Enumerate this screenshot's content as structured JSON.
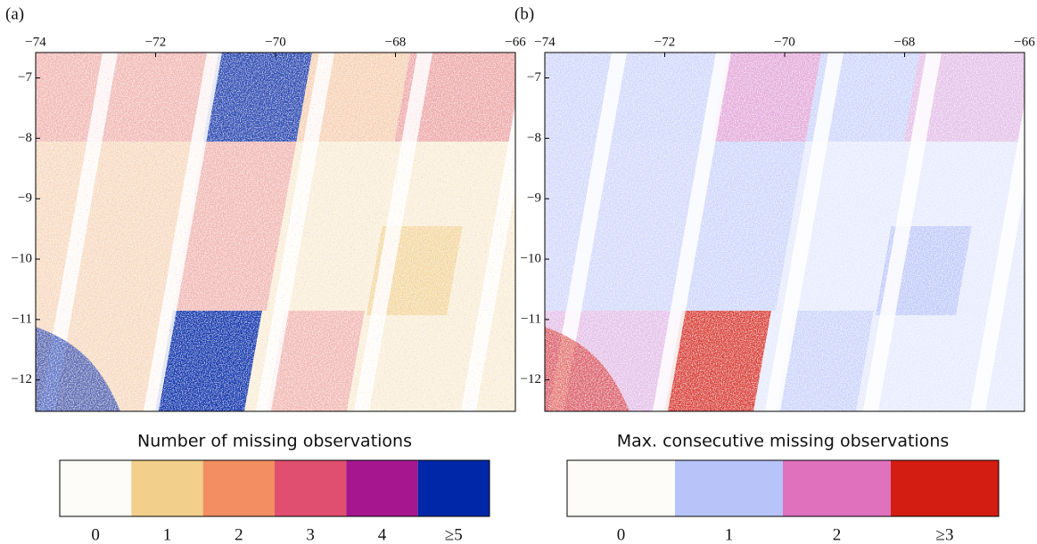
{
  "panels": [
    {
      "label": "(a)",
      "xlim": [
        -74,
        -66
      ],
      "ylim": [
        -12.52,
        -6.58
      ],
      "xticks": [
        {
          "value": -74,
          "label": "−74"
        },
        {
          "value": -72,
          "label": "−72"
        },
        {
          "value": -70,
          "label": "−70"
        },
        {
          "value": -68,
          "label": "−68"
        },
        {
          "value": -66,
          "label": "−66"
        }
      ],
      "yticks": [
        {
          "value": -7,
          "label": "−7"
        },
        {
          "value": -8,
          "label": "−8"
        },
        {
          "value": -9,
          "label": "−9"
        },
        {
          "value": -10,
          "label": "−10"
        },
        {
          "value": -11,
          "label": "−11"
        },
        {
          "value": -12,
          "label": "−12"
        }
      ],
      "legend": {
        "title": "Number of missing observations",
        "classes": [
          {
            "label": "0",
            "color": "#fdfcf8"
          },
          {
            "label": "1",
            "color": "#f2cf8a"
          },
          {
            "label": "2",
            "color": "#f28e62"
          },
          {
            "label": "3",
            "color": "#e04f6f"
          },
          {
            "label": "4",
            "color": "#a6168f"
          },
          {
            "label": "≥5",
            "color": "#0027a8"
          }
        ]
      }
    },
    {
      "label": "(b)",
      "xlim": [
        -74,
        -66
      ],
      "ylim": [
        -12.52,
        -6.58
      ],
      "xticks": [
        {
          "value": -74,
          "label": "−74"
        },
        {
          "value": -72,
          "label": "−72"
        },
        {
          "value": -70,
          "label": "−70"
        },
        {
          "value": -68,
          "label": "−68"
        },
        {
          "value": -66,
          "label": "−66"
        }
      ],
      "yticks": [
        {
          "value": -7,
          "label": "−7"
        },
        {
          "value": -8,
          "label": "−8"
        },
        {
          "value": -9,
          "label": "−9"
        },
        {
          "value": -10,
          "label": "−10"
        },
        {
          "value": -11,
          "label": "−11"
        },
        {
          "value": -12,
          "label": "−12"
        }
      ],
      "legend": {
        "title": "Max. consecutive missing observations",
        "classes": [
          {
            "label": "0",
            "color": "#fdfcf8"
          },
          {
            "label": "1",
            "color": "#b7c3f9"
          },
          {
            "label": "2",
            "color": "#e071bd"
          },
          {
            "label": "≥3",
            "color": "#d41d12"
          }
        ]
      }
    }
  ]
}
